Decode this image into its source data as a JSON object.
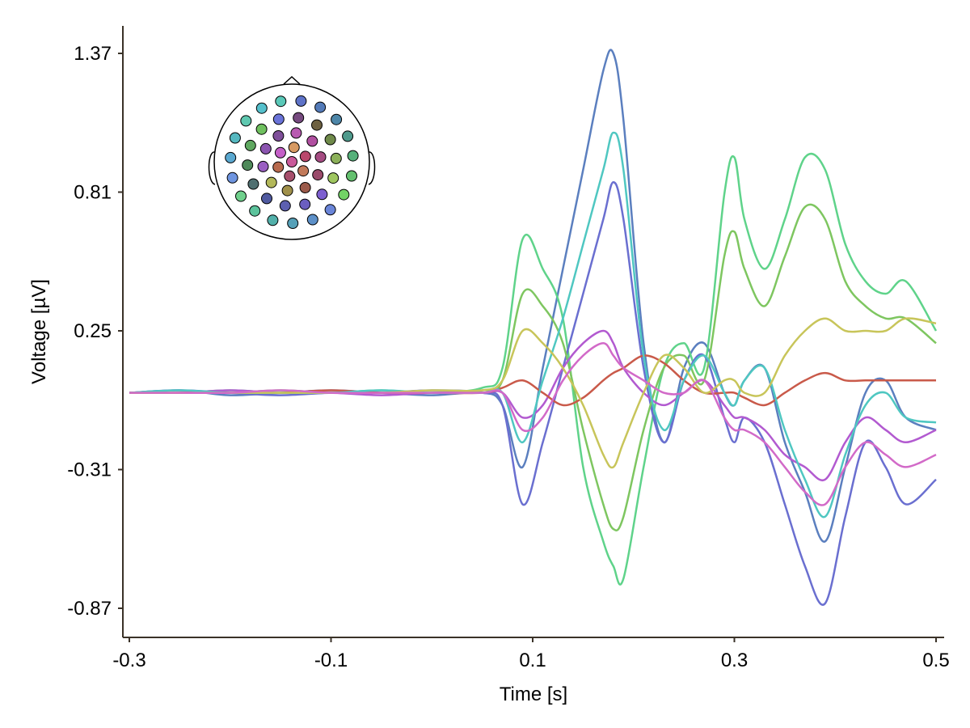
{
  "chart_data": {
    "type": "line",
    "title": "",
    "xlabel": "Time [s]",
    "ylabel": "Voltage [µV]",
    "xlim": [
      -0.3,
      0.5
    ],
    "ylim": [
      -0.87,
      1.37
    ],
    "x_ticks": [
      -0.3,
      -0.1,
      0.1,
      0.3,
      0.5
    ],
    "x_tick_labels": [
      "-0.3",
      "-0.1",
      "0.1",
      "0.3",
      "0.5"
    ],
    "y_ticks": [
      1.37,
      0.81,
      0.25,
      -0.31,
      -0.87
    ],
    "y_tick_labels": [
      "1.37",
      "0.81",
      "0.25",
      "-0.31",
      "-0.87"
    ],
    "grid": false,
    "legend": "topographic head inset (top-left) with colored electrode positions",
    "x": [
      -0.3,
      -0.25,
      -0.2,
      -0.15,
      -0.1,
      -0.05,
      0.0,
      0.05,
      0.07,
      0.09,
      0.11,
      0.13,
      0.15,
      0.17,
      0.18,
      0.19,
      0.21,
      0.23,
      0.25,
      0.27,
      0.29,
      0.3,
      0.31,
      0.33,
      0.35,
      0.37,
      0.39,
      0.41,
      0.43,
      0.45,
      0.47,
      0.5
    ],
    "series": [
      {
        "color": "#5b7fbf",
        "values": [
          0.0,
          0.01,
          -0.01,
          0.0,
          0.01,
          0.0,
          -0.01,
          0.0,
          -0.05,
          -0.3,
          0.1,
          0.5,
          0.9,
          1.3,
          1.37,
          1.1,
          0.2,
          -0.2,
          0.1,
          0.2,
          0.0,
          -0.05,
          0.05,
          0.1,
          -0.2,
          -0.4,
          -0.6,
          -0.3,
          0.0,
          0.05,
          -0.1,
          -0.15
        ]
      },
      {
        "color": "#5fd38a",
        "values": [
          0.0,
          0.0,
          0.01,
          0.0,
          0.0,
          0.01,
          0.0,
          0.02,
          0.1,
          0.62,
          0.5,
          0.3,
          -0.3,
          -0.6,
          -0.7,
          -0.75,
          -0.3,
          0.1,
          0.2,
          0.1,
          0.8,
          0.95,
          0.7,
          0.5,
          0.7,
          0.95,
          0.9,
          0.6,
          0.45,
          0.4,
          0.45,
          0.25
        ]
      },
      {
        "color": "#6a6fd0",
        "values": [
          0.0,
          0.01,
          0.0,
          -0.01,
          0.0,
          0.0,
          0.01,
          0.0,
          -0.05,
          -0.45,
          -0.2,
          0.1,
          0.4,
          0.7,
          0.85,
          0.7,
          0.1,
          -0.2,
          0.05,
          0.15,
          -0.1,
          -0.2,
          -0.1,
          -0.2,
          -0.45,
          -0.7,
          -0.85,
          -0.5,
          -0.2,
          -0.3,
          -0.45,
          -0.35
        ]
      },
      {
        "color": "#7ec660",
        "values": [
          0.0,
          0.0,
          0.0,
          0.01,
          0.0,
          0.0,
          0.0,
          0.01,
          0.05,
          0.4,
          0.35,
          0.2,
          -0.15,
          -0.45,
          -0.55,
          -0.5,
          -0.15,
          0.1,
          0.15,
          0.05,
          0.55,
          0.65,
          0.5,
          0.35,
          0.55,
          0.75,
          0.7,
          0.45,
          0.35,
          0.3,
          0.3,
          0.2
        ]
      },
      {
        "color": "#b25ad0",
        "values": [
          0.0,
          0.0,
          0.01,
          0.0,
          0.0,
          -0.01,
          0.0,
          0.0,
          0.0,
          -0.1,
          -0.05,
          0.1,
          0.2,
          0.25,
          0.2,
          0.1,
          0.0,
          -0.05,
          0.0,
          0.05,
          -0.05,
          -0.1,
          -0.1,
          -0.15,
          -0.25,
          -0.3,
          -0.35,
          -0.2,
          -0.1,
          -0.15,
          -0.2,
          -0.15
        ]
      },
      {
        "color": "#c95a4a",
        "values": [
          0.0,
          0.0,
          0.0,
          0.0,
          0.01,
          0.0,
          0.0,
          0.0,
          0.02,
          0.05,
          0.0,
          -0.05,
          -0.02,
          0.05,
          0.08,
          0.1,
          0.15,
          0.12,
          0.05,
          0.0,
          0.0,
          0.0,
          -0.02,
          -0.05,
          0.0,
          0.05,
          0.08,
          0.05,
          0.05,
          0.05,
          0.05,
          0.05
        ]
      },
      {
        "color": "#4fc7c1",
        "values": [
          0.0,
          0.01,
          0.0,
          0.0,
          0.0,
          0.01,
          0.0,
          0.0,
          0.0,
          -0.2,
          0.05,
          0.3,
          0.6,
          0.9,
          1.05,
          0.9,
          0.15,
          -0.15,
          0.05,
          0.15,
          0.0,
          -0.05,
          0.05,
          0.1,
          -0.15,
          -0.35,
          -0.5,
          -0.25,
          -0.05,
          0.0,
          -0.1,
          -0.12
        ]
      },
      {
        "color": "#c8c55a",
        "values": [
          0.0,
          0.0,
          0.0,
          0.0,
          0.0,
          0.0,
          0.01,
          0.01,
          0.05,
          0.25,
          0.2,
          0.1,
          -0.05,
          -0.25,
          -0.3,
          -0.2,
          0.0,
          0.15,
          0.1,
          0.0,
          0.05,
          0.05,
          0.0,
          0.0,
          0.15,
          0.25,
          0.3,
          0.25,
          0.25,
          0.25,
          0.3,
          0.28
        ]
      },
      {
        "color": "#d26ac8",
        "values": [
          0.0,
          0.0,
          0.0,
          0.01,
          0.0,
          0.0,
          0.0,
          0.0,
          0.0,
          -0.15,
          -0.1,
          0.05,
          0.15,
          0.2,
          0.15,
          0.1,
          0.05,
          0.0,
          0.0,
          0.05,
          -0.1,
          -0.15,
          -0.15,
          -0.2,
          -0.3,
          -0.4,
          -0.45,
          -0.3,
          -0.2,
          -0.25,
          -0.3,
          -0.25
        ]
      }
    ]
  },
  "inset": {
    "type": "topomap",
    "electrode_colors": [
      "#c95a9a",
      "#d79a62",
      "#b9486c",
      "#c27a5a",
      "#a74f6c",
      "#b86a4e",
      "#c45fc7",
      "#b85ab0",
      "#b04fa0",
      "#a54c82",
      "#9a4a6a",
      "#9b5a4a",
      "#a0904a",
      "#b3b85a",
      "#9a5fc2",
      "#8b55b0",
      "#7f4f9a",
      "#764a7f",
      "#6d6040",
      "#6f8a4a",
      "#8cb05a",
      "#9fc660",
      "#7d5fd0",
      "#6b5ec0",
      "#5c5fb0",
      "#505aa0",
      "#4f6f70",
      "#4f8a5a",
      "#5fa860",
      "#6fc05f",
      "#6a73d8",
      "#5e73c8",
      "#537ab8",
      "#4d86a8",
      "#4f9a8c",
      "#56b07a",
      "#64c06f",
      "#72d366",
      "#6a85d8",
      "#5d90c8",
      "#55a0b8",
      "#52b0aa",
      "#5cc39c",
      "#6fd08c",
      "#6f95e0",
      "#5aa8d0",
      "#55b8c0",
      "#5fc8b0",
      "#55c0cc",
      "#5ac8b8"
    ]
  }
}
